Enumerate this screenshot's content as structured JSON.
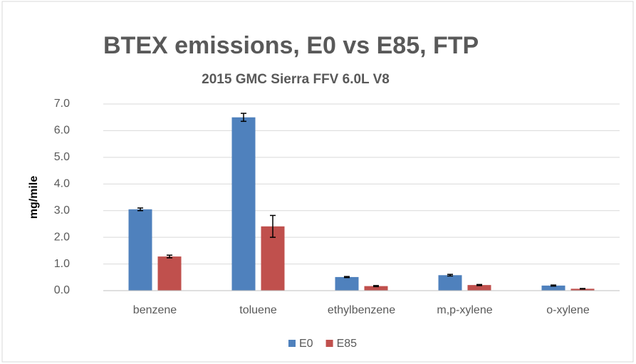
{
  "chart_data": {
    "type": "bar",
    "title": "BTEX  emissions, E0 vs E85, FTP",
    "subtitle": "2015 GMC Sierra FFV 6.0L V8",
    "y_label": "mg/mile",
    "categories": [
      "benzene",
      "toluene",
      "ethylbenzene",
      "m,p-xylene",
      "o-xylene"
    ],
    "series": [
      {
        "name": "E0",
        "color": "#4f81bd",
        "values": [
          3.05,
          6.5,
          0.51,
          0.58,
          0.19
        ],
        "errors": [
          0.05,
          0.15,
          0.02,
          0.03,
          0.02
        ]
      },
      {
        "name": "E85",
        "color": "#c0504d",
        "values": [
          1.28,
          2.41,
          0.17,
          0.21,
          0.07
        ],
        "errors": [
          0.05,
          0.41,
          0.02,
          0.02,
          0.01
        ]
      }
    ],
    "ylim": [
      0,
      7
    ],
    "yticks": [
      {
        "value": 0,
        "label": "0.0"
      },
      {
        "value": 1,
        "label": "1.0"
      },
      {
        "value": 2,
        "label": "2.0"
      },
      {
        "value": 3,
        "label": "3.0"
      },
      {
        "value": 4,
        "label": "4.0"
      },
      {
        "value": 5,
        "label": "5.0"
      },
      {
        "value": 6,
        "label": "6.0"
      },
      {
        "value": 7,
        "label": "7.0"
      }
    ],
    "grid": true,
    "legend": "bottom"
  }
}
